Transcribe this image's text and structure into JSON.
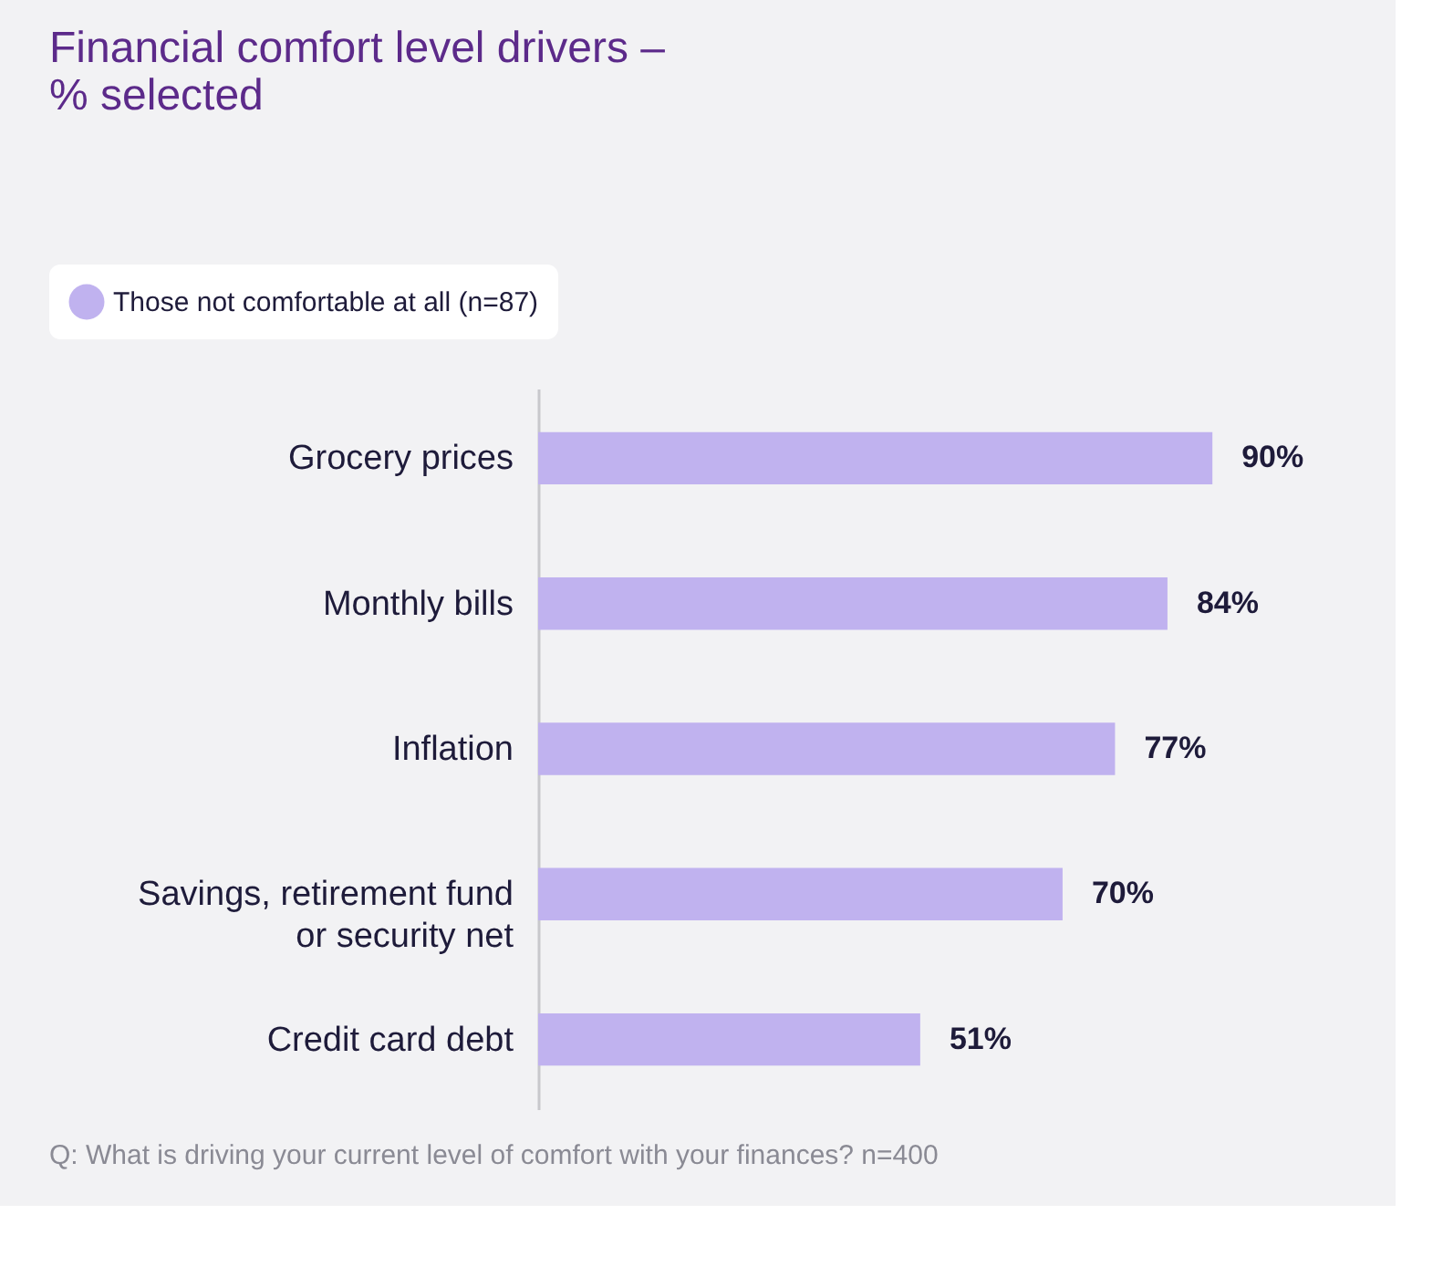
{
  "chart_data": {
    "type": "bar",
    "orientation": "horizontal",
    "title": "Financial comfort level drivers – % selected",
    "categories": [
      "Grocery prices",
      "Monthly bills",
      "Inflation",
      "Savings, retirement fund or security net",
      "Credit card debt"
    ],
    "series": [
      {
        "name": "Those not comfortable at all (n=87)",
        "color": "#c0b2ef",
        "values": [
          90,
          84,
          77,
          70,
          51
        ],
        "value_labels": [
          "90%",
          "84%",
          "77%",
          "70%",
          "51%"
        ]
      }
    ],
    "legend": "top left",
    "annotations": [
      "Q: What is driving your current level of comfort with your finances? n=400"
    ]
  }
}
